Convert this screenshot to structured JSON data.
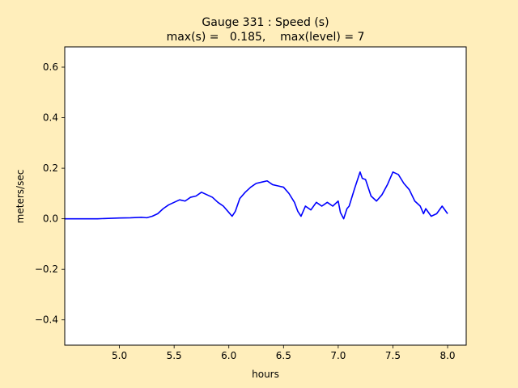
{
  "figure": {
    "background": "#ffeebb",
    "title_line1": "Gauge 331 : Speed (s)",
    "title_line2": "max(s) =   0.185,    max(level) = 7"
  },
  "chart_data": {
    "type": "line",
    "title": "Gauge 331 : Speed (s)",
    "subtitle": "max(s) =   0.185,    max(level) = 7",
    "xlabel": "hours",
    "ylabel": "meters/sec",
    "xlim": [
      4.5,
      8.17
    ],
    "ylim": [
      -0.5,
      0.68
    ],
    "xticks": [
      5.0,
      5.5,
      6.0,
      6.5,
      7.0,
      7.5,
      8.0
    ],
    "xtick_labels": [
      "5.0",
      "5.5",
      "6.0",
      "6.5",
      "7.0",
      "7.5",
      "8.0"
    ],
    "yticks": [
      -0.4,
      -0.2,
      0.0,
      0.2,
      0.4,
      0.6
    ],
    "ytick_labels": [
      "−0.4",
      "−0.2",
      "0.0",
      "0.2",
      "0.4",
      "0.6"
    ],
    "grid": false,
    "line_color": "#0000ff",
    "series": [
      {
        "x": [
          4.5,
          4.8,
          5.0,
          5.1,
          5.2,
          5.25,
          5.3,
          5.35,
          5.4,
          5.45,
          5.5,
          5.55,
          5.6,
          5.65,
          5.7,
          5.75,
          5.8,
          5.85,
          5.9,
          5.95,
          6.0,
          6.03,
          6.06,
          6.1,
          6.15,
          6.2,
          6.25,
          6.3,
          6.35,
          6.4,
          6.45,
          6.5,
          6.55,
          6.6,
          6.63,
          6.66,
          6.7,
          6.75,
          6.8,
          6.85,
          6.9,
          6.95,
          7.0,
          7.02,
          7.05,
          7.08,
          7.1,
          7.15,
          7.2,
          7.22,
          7.25,
          7.3,
          7.35,
          7.4,
          7.45,
          7.5,
          7.55,
          7.6,
          7.65,
          7.7,
          7.75,
          7.78,
          7.8,
          7.85,
          7.9,
          7.95,
          8.0
        ],
        "y": [
          0.0,
          0.0,
          0.003,
          0.004,
          0.006,
          0.004,
          0.01,
          0.02,
          0.04,
          0.055,
          0.065,
          0.075,
          0.07,
          0.085,
          0.09,
          0.105,
          0.095,
          0.085,
          0.065,
          0.05,
          0.025,
          0.01,
          0.03,
          0.08,
          0.105,
          0.125,
          0.14,
          0.145,
          0.15,
          0.135,
          0.13,
          0.125,
          0.1,
          0.065,
          0.03,
          0.01,
          0.05,
          0.035,
          0.065,
          0.05,
          0.065,
          0.05,
          0.07,
          0.025,
          0.0,
          0.04,
          0.05,
          0.12,
          0.185,
          0.16,
          0.155,
          0.09,
          0.07,
          0.095,
          0.135,
          0.185,
          0.175,
          0.14,
          0.115,
          0.07,
          0.05,
          0.02,
          0.04,
          0.01,
          0.02,
          0.05,
          0.02
        ]
      }
    ]
  }
}
